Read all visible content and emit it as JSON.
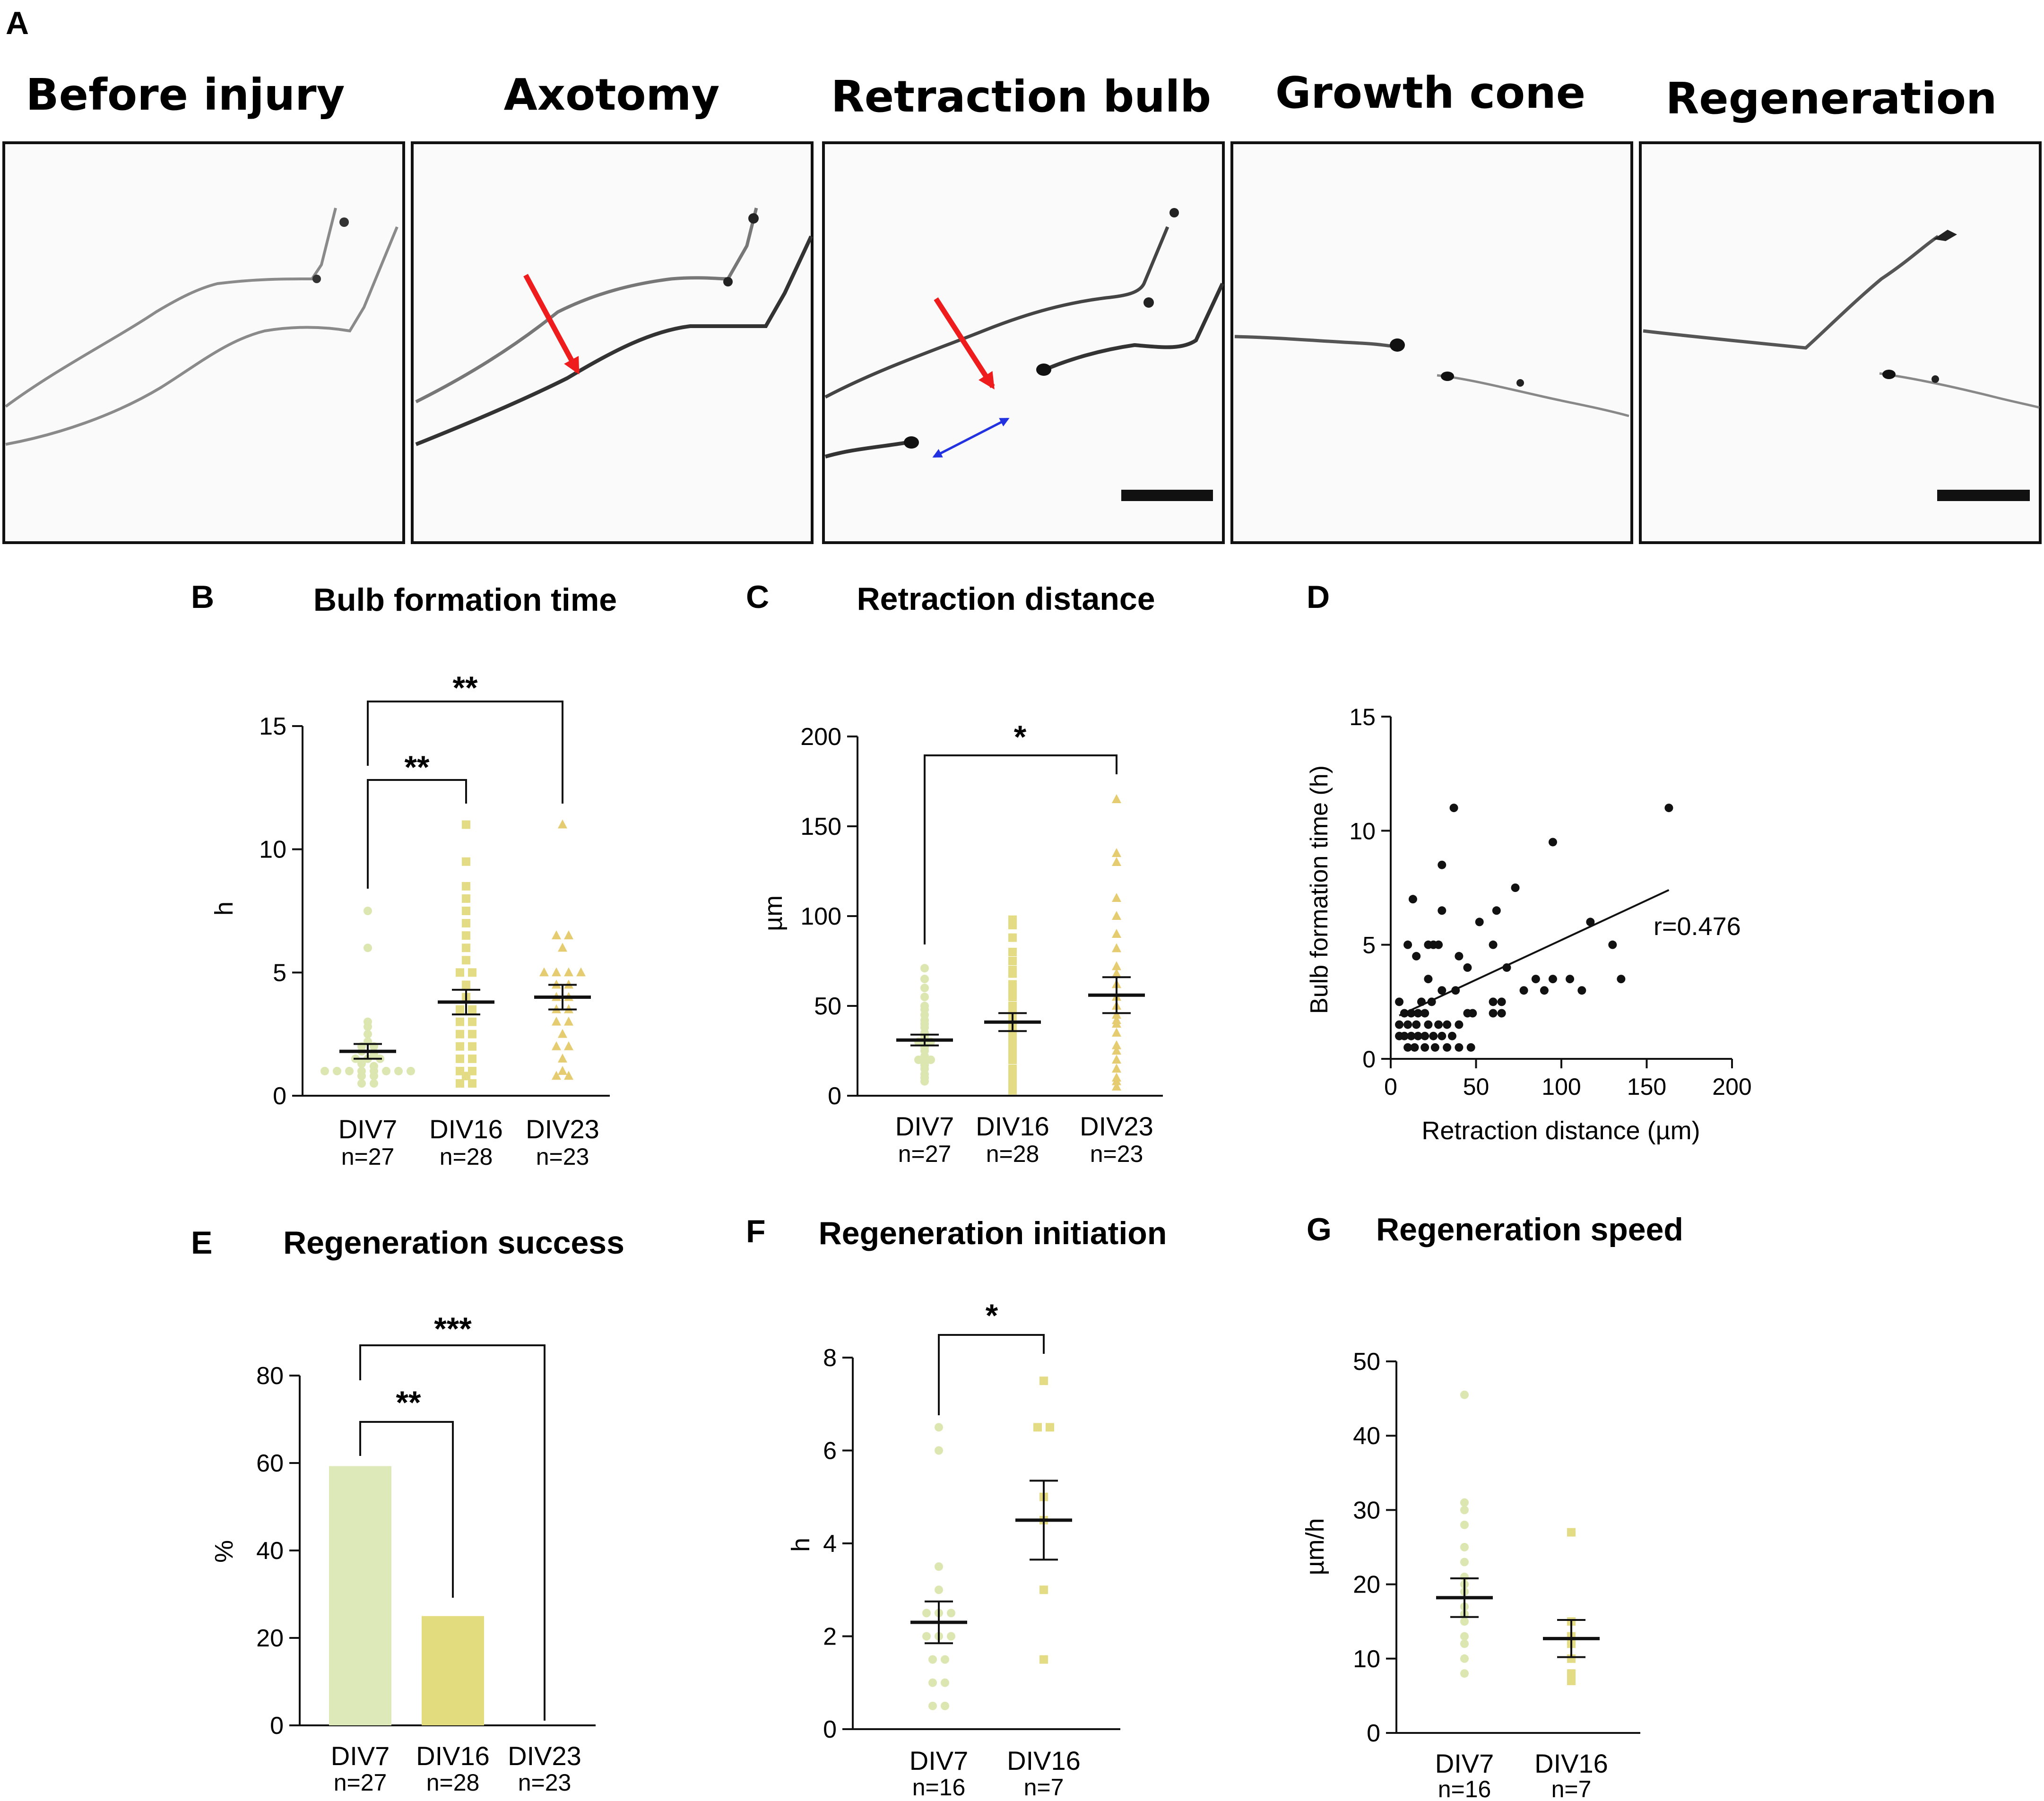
{
  "colors": {
    "div7": "#dde9b8",
    "div7_point": "#dbe6b0",
    "div16": "#e2dc7e",
    "div16_point": "#e4dc85",
    "div23": "#e2c86e",
    "div23_point": "#e6cc70",
    "red_arrow": "#ee1c1c",
    "blue_arrow": "#2232e0",
    "ink": "#111111"
  },
  "panel_a": {
    "letter": "A",
    "titles": [
      "Before injury",
      "Axotomy",
      "Retraction bulb",
      "Growth cone",
      "Regeneration"
    ]
  },
  "panel_b": {
    "letter": "B",
    "sig": [
      "**",
      "**"
    ],
    "groups": [
      {
        "name": "DIV7",
        "n": "n=27"
      },
      {
        "name": "DIV16",
        "n": "n=28"
      },
      {
        "name": "DIV23",
        "n": "n=23"
      }
    ]
  },
  "panel_c": {
    "letter": "C",
    "sig": [
      "*"
    ],
    "groups": [
      {
        "name": "DIV7",
        "n": "n=27"
      },
      {
        "name": "DIV16",
        "n": "n=28"
      },
      {
        "name": "DIV23",
        "n": "n=23"
      }
    ]
  },
  "panel_d": {
    "letter": "D",
    "annotation": "r=0.476"
  },
  "panel_e": {
    "letter": "E",
    "sig": [
      "**",
      "***"
    ],
    "groups": [
      {
        "name": "DIV7",
        "n": "n=27"
      },
      {
        "name": "DIV16",
        "n": "n=28"
      },
      {
        "name": "DIV23",
        "n": "n=23"
      }
    ]
  },
  "panel_f": {
    "letter": "F",
    "sig": [
      "*"
    ],
    "groups": [
      {
        "name": "DIV7",
        "n": "n=16"
      },
      {
        "name": "DIV16",
        "n": "n=7"
      }
    ]
  },
  "panel_g": {
    "letter": "G",
    "groups": [
      {
        "name": "DIV7",
        "n": "n=16"
      },
      {
        "name": "DIV16",
        "n": "n=7"
      }
    ]
  },
  "chart_data": [
    {
      "id": "B",
      "type": "scatter",
      "title": "Bulb formation time",
      "xlabel": "",
      "ylabel": "h",
      "ylim": [
        0,
        15
      ],
      "yticks": [
        0,
        5,
        10,
        15
      ],
      "categories": [
        "DIV7",
        "DIV16",
        "DIV23"
      ],
      "series": [
        {
          "name": "DIV7",
          "mean": 1.8,
          "sem": 0.3,
          "values": [
            7.5,
            6.0,
            3.0,
            2.8,
            2.5,
            2.2,
            2.0,
            2.0,
            1.8,
            1.7,
            1.5,
            1.5,
            1.5,
            1.3,
            1.2,
            1.0,
            1.0,
            1.0,
            1.0,
            1.0,
            1.0,
            1.0,
            1.0,
            0.8,
            0.8,
            0.5,
            0.5
          ]
        },
        {
          "name": "DIV16",
          "mean": 3.8,
          "sem": 0.5,
          "values": [
            11.0,
            9.5,
            8.5,
            8.0,
            7.5,
            7.0,
            6.5,
            6.0,
            5.5,
            5.0,
            5.0,
            4.5,
            4.0,
            3.5,
            3.5,
            3.0,
            3.0,
            2.5,
            2.5,
            2.0,
            2.0,
            1.5,
            1.5,
            1.0,
            1.0,
            0.8,
            0.5,
            0.5
          ]
        },
        {
          "name": "DIV23",
          "mean": 4.0,
          "sem": 0.5,
          "values": [
            11.0,
            6.5,
            6.5,
            6.0,
            5.0,
            5.0,
            5.0,
            5.0,
            4.5,
            4.5,
            4.0,
            4.0,
            3.5,
            3.5,
            3.0,
            3.0,
            2.5,
            2.0,
            2.0,
            1.5,
            1.0,
            0.8,
            0.8
          ]
        }
      ],
      "comparisons": [
        {
          "groups": [
            "DIV7",
            "DIV16"
          ],
          "label": "**"
        },
        {
          "groups": [
            "DIV7",
            "DIV23"
          ],
          "label": "**"
        }
      ]
    },
    {
      "id": "C",
      "type": "scatter",
      "title": "Retraction distance",
      "xlabel": "",
      "ylabel": "µm",
      "ylim": [
        0,
        200
      ],
      "yticks": [
        0,
        50,
        100,
        150,
        200
      ],
      "categories": [
        "DIV7",
        "DIV16",
        "DIV23"
      ],
      "series": [
        {
          "name": "DIV7",
          "mean": 31,
          "sem": 3,
          "values": [
            71,
            65,
            60,
            55,
            50,
            48,
            45,
            42,
            40,
            38,
            35,
            33,
            32,
            30,
            30,
            28,
            27,
            25,
            22,
            20,
            20,
            18,
            17,
            15,
            12,
            10,
            8
          ]
        },
        {
          "name": "DIV16",
          "mean": 41,
          "sem": 5,
          "values": [
            98,
            95,
            88,
            80,
            75,
            70,
            68,
            62,
            58,
            55,
            50,
            48,
            45,
            42,
            40,
            38,
            35,
            33,
            30,
            28,
            25,
            22,
            20,
            15,
            12,
            8,
            5,
            3
          ]
        },
        {
          "name": "DIV23",
          "mean": 56,
          "sem": 10,
          "values": [
            165,
            135,
            130,
            110,
            100,
            90,
            82,
            72,
            68,
            62,
            55,
            50,
            45,
            42,
            40,
            35,
            28,
            25,
            20,
            15,
            10,
            8,
            5
          ]
        }
      ],
      "comparisons": [
        {
          "groups": [
            "DIV7",
            "DIV23"
          ],
          "label": "*"
        }
      ]
    },
    {
      "id": "D",
      "type": "scatter",
      "title": "",
      "xlabel": "Retraction distance (µm)",
      "ylabel": "Bulb formation time (h)",
      "xlim": [
        0,
        200
      ],
      "ylim": [
        0,
        15
      ],
      "xticks": [
        0,
        50,
        100,
        150,
        200
      ],
      "yticks": [
        0,
        5,
        10,
        15
      ],
      "points": [
        [
          37,
          11
        ],
        [
          163,
          11
        ],
        [
          95,
          9.5
        ],
        [
          30,
          8.5
        ],
        [
          73,
          7.5
        ],
        [
          13,
          7
        ],
        [
          62,
          6.5
        ],
        [
          30,
          6.5
        ],
        [
          52,
          6
        ],
        [
          117,
          6
        ],
        [
          10,
          5
        ],
        [
          22,
          5
        ],
        [
          25,
          5
        ],
        [
          28,
          5
        ],
        [
          60,
          5
        ],
        [
          130,
          5
        ],
        [
          15,
          4.5
        ],
        [
          40,
          4.5
        ],
        [
          68,
          4
        ],
        [
          45,
          4
        ],
        [
          22,
          3.5
        ],
        [
          85,
          3.5
        ],
        [
          95,
          3.5
        ],
        [
          105,
          3.5
        ],
        [
          135,
          3.5
        ],
        [
          30,
          3
        ],
        [
          38,
          3
        ],
        [
          78,
          3
        ],
        [
          90,
          3
        ],
        [
          112,
          3
        ],
        [
          5,
          2.5
        ],
        [
          18,
          2.5
        ],
        [
          24,
          2.5
        ],
        [
          60,
          2.5
        ],
        [
          65,
          2.5
        ],
        [
          8,
          2
        ],
        [
          12,
          2
        ],
        [
          16,
          2
        ],
        [
          20,
          2
        ],
        [
          45,
          2
        ],
        [
          48,
          2
        ],
        [
          60,
          2
        ],
        [
          65,
          2
        ],
        [
          5,
          1.5
        ],
        [
          10,
          1.5
        ],
        [
          15,
          1.5
        ],
        [
          22,
          1.5
        ],
        [
          28,
          1.5
        ],
        [
          33,
          1.5
        ],
        [
          40,
          1.5
        ],
        [
          5,
          1
        ],
        [
          8,
          1
        ],
        [
          12,
          1
        ],
        [
          16,
          1
        ],
        [
          20,
          1
        ],
        [
          25,
          1
        ],
        [
          30,
          1
        ],
        [
          36,
          1
        ],
        [
          10,
          0.5
        ],
        [
          14,
          0.5
        ],
        [
          20,
          0.5
        ],
        [
          26,
          0.5
        ],
        [
          33,
          0.5
        ],
        [
          40,
          0.5
        ],
        [
          47,
          0.5
        ]
      ],
      "fit": {
        "x": [
          5,
          163
        ],
        "y": [
          1.9,
          7.4
        ]
      },
      "annotation": "r=0.476"
    },
    {
      "id": "E",
      "type": "bar",
      "title": "Regeneration success",
      "xlabel": "",
      "ylabel": "%",
      "ylim": [
        0,
        80
      ],
      "yticks": [
        0,
        20,
        40,
        60,
        80
      ],
      "categories": [
        "DIV7",
        "DIV16",
        "DIV23"
      ],
      "values": [
        59.3,
        25.0,
        0
      ],
      "comparisons": [
        {
          "groups": [
            "DIV7",
            "DIV16"
          ],
          "label": "**"
        },
        {
          "groups": [
            "DIV7",
            "DIV23"
          ],
          "label": "***"
        }
      ]
    },
    {
      "id": "F",
      "type": "scatter",
      "title": "Regeneration initiation",
      "xlabel": "",
      "ylabel": "h",
      "ylim": [
        0,
        8
      ],
      "yticks": [
        0,
        2,
        4,
        6,
        8
      ],
      "categories": [
        "DIV7",
        "DIV16"
      ],
      "series": [
        {
          "name": "DIV7",
          "mean": 2.3,
          "sem": 0.45,
          "values": [
            6.5,
            6.0,
            3.5,
            3.0,
            2.5,
            2.5,
            2.5,
            2.0,
            2.0,
            2.0,
            1.5,
            1.5,
            1.0,
            1.0,
            0.5,
            0.5
          ]
        },
        {
          "name": "DIV16",
          "mean": 4.5,
          "sem": 0.85,
          "values": [
            7.5,
            6.5,
            6.5,
            5.0,
            4.5,
            3.0,
            1.5
          ]
        }
      ],
      "comparisons": [
        {
          "groups": [
            "DIV7",
            "DIV16"
          ],
          "label": "*"
        }
      ]
    },
    {
      "id": "G",
      "type": "scatter",
      "title": "Regeneration speed",
      "xlabel": "",
      "ylabel": "µm/h",
      "ylim": [
        0,
        50
      ],
      "yticks": [
        0,
        10,
        20,
        30,
        40,
        50
      ],
      "categories": [
        "DIV7",
        "DIV16"
      ],
      "series": [
        {
          "name": "DIV7",
          "mean": 18.2,
          "sem": 2.6,
          "values": [
            45.5,
            31,
            30,
            28,
            25,
            23,
            21,
            20,
            19,
            17,
            16,
            15,
            13,
            12,
            10,
            8
          ]
        },
        {
          "name": "DIV16",
          "mean": 12.7,
          "sem": 2.5,
          "values": [
            27,
            15,
            13,
            12,
            10,
            8,
            7
          ]
        }
      ],
      "comparisons": []
    }
  ]
}
